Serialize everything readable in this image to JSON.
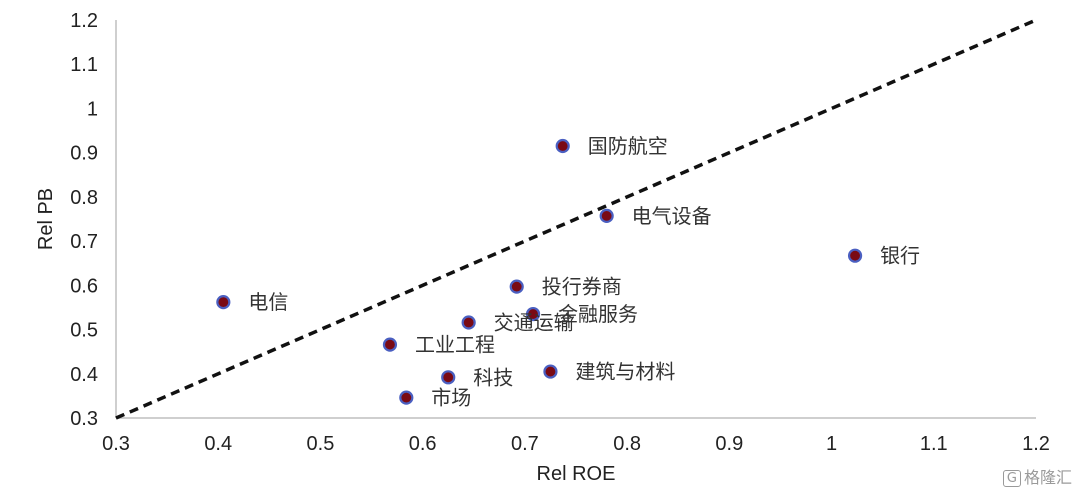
{
  "chart_data": {
    "type": "scatter",
    "xlabel": "Rel ROE",
    "ylabel": "Rel PB",
    "xlim": [
      0.3,
      1.2
    ],
    "ylim": [
      0.3,
      1.2
    ],
    "x_ticks": [
      "0.3",
      "0.4",
      "0.5",
      "0.6",
      "0.7",
      "0.8",
      "0.9",
      "1",
      "1.1",
      "1.2"
    ],
    "y_ticks": [
      "0.3",
      "0.4",
      "0.5",
      "0.6",
      "0.7",
      "0.8",
      "0.9",
      "1",
      "1.1",
      "1.2"
    ],
    "reference_line": {
      "style": "dashed",
      "from": [
        0.3,
        0.3
      ],
      "to": [
        1.2,
        1.2
      ]
    },
    "grid": false,
    "marker_color": "#7a0a14",
    "marker_edge_color": "#4a5fc1",
    "points": [
      {
        "label": "国防航空",
        "x": 0.737,
        "y": 0.915
      },
      {
        "label": "电气设备",
        "x": 0.78,
        "y": 0.757
      },
      {
        "label": "银行",
        "x": 1.023,
        "y": 0.667
      },
      {
        "label": "电信",
        "x": 0.405,
        "y": 0.562
      },
      {
        "label": "投行券商",
        "x": 0.692,
        "y": 0.597
      },
      {
        "label": "金融服务",
        "x": 0.708,
        "y": 0.535
      },
      {
        "label": "交通运输",
        "x": 0.645,
        "y": 0.516
      },
      {
        "label": "工业工程",
        "x": 0.568,
        "y": 0.466
      },
      {
        "label": "科技",
        "x": 0.625,
        "y": 0.392
      },
      {
        "label": "建筑与材料",
        "x": 0.725,
        "y": 0.405
      },
      {
        "label": "市场",
        "x": 0.584,
        "y": 0.346
      }
    ]
  },
  "watermark": {
    "icon": "G",
    "text": "格隆汇"
  }
}
